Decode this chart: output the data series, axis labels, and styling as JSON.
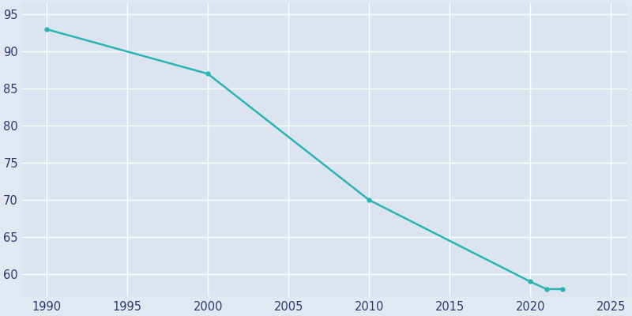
{
  "years": [
    1990,
    2000,
    2010,
    2020,
    2021,
    2022
  ],
  "population": [
    93,
    87,
    70,
    59,
    58,
    58
  ],
  "line_color": "#2ab5b5",
  "marker": "o",
  "marker_size": 3.5,
  "line_width": 1.8,
  "bg_color": "#e2e8f2",
  "plot_bg_color": "#dce4f0",
  "grid_color": "#ffffff",
  "tick_color": "#2b3a6b",
  "xlim": [
    1988.5,
    2026
  ],
  "ylim": [
    57,
    96.5
  ],
  "xticks": [
    1990,
    1995,
    2000,
    2005,
    2010,
    2015,
    2020,
    2025
  ],
  "yticks": [
    60,
    65,
    70,
    75,
    80,
    85,
    90,
    95
  ]
}
